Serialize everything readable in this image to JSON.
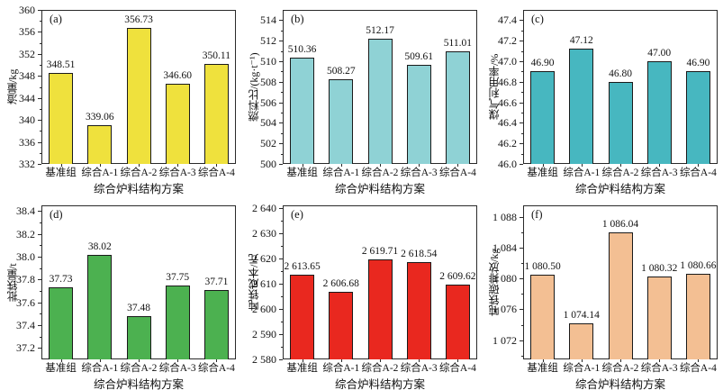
{
  "figure": {
    "background": "#ffffff",
    "text_color": "#111111",
    "axis_color": "#2a2a2a"
  },
  "chart_data": [
    {
      "type": "bar",
      "panel_label": "(a)",
      "title": "",
      "ylabel": "渣量/kg",
      "xlabel": "综合炉料结构方案",
      "categories": [
        "基准组",
        "综合A-1",
        "综合A-2",
        "综合A-3",
        "综合A-4"
      ],
      "values": [
        348.51,
        339.06,
        356.73,
        346.6,
        350.11
      ],
      "value_labels": [
        "348.51",
        "339.06",
        "356.73",
        "346.60",
        "350.11"
      ],
      "yticks": [
        332,
        336,
        340,
        344,
        348,
        352,
        356,
        360
      ],
      "ytick_labels": [
        "332",
        "336",
        "340",
        "344",
        "348",
        "352",
        "356",
        "360"
      ],
      "ylim": [
        332,
        360
      ],
      "grid": false,
      "legend": null,
      "bar_color": "#efe13d",
      "bar_edge_color": "#1a1a1a"
    },
    {
      "type": "bar",
      "panel_label": "(b)",
      "title": "",
      "ylabel": "燃料比/(kg·t⁻¹)",
      "xlabel": "综合炉料结构方案",
      "categories": [
        "基准组",
        "综合A-1",
        "综合A-2",
        "综合A-3",
        "综合A-4"
      ],
      "values": [
        510.36,
        508.27,
        512.17,
        509.61,
        511.01
      ],
      "value_labels": [
        "510.36",
        "508.27",
        "512.17",
        "509.61",
        "511.01"
      ],
      "yticks": [
        500,
        502,
        504,
        506,
        508,
        510,
        512,
        514
      ],
      "ytick_labels": [
        "500",
        "502",
        "504",
        "506",
        "508",
        "510",
        "512",
        "514"
      ],
      "ylim": [
        500,
        515
      ],
      "grid": false,
      "legend": null,
      "bar_color": "#8fd2d5",
      "bar_edge_color": "#1a1a1a"
    },
    {
      "type": "bar",
      "panel_label": "(c)",
      "title": "",
      "ylabel": "煤气利用率/%",
      "xlabel": "综合炉料结构方案",
      "categories": [
        "基准组",
        "综合A-1",
        "综合A-2",
        "综合A-3",
        "综合A-4"
      ],
      "values": [
        46.9,
        47.12,
        46.8,
        47.0,
        46.9
      ],
      "value_labels": [
        "46.90",
        "47.12",
        "46.80",
        "47.00",
        "46.90"
      ],
      "yticks": [
        46.0,
        46.2,
        46.4,
        46.6,
        46.8,
        47.0,
        47.2,
        47.4
      ],
      "ytick_labels": [
        "46.0",
        "46.2",
        "46.4",
        "46.6",
        "46.8",
        "47.0",
        "47.2",
        "47.4"
      ],
      "ylim": [
        46.0,
        47.5
      ],
      "grid": false,
      "legend": null,
      "bar_color": "#47b7c0",
      "bar_edge_color": "#1a1a1a"
    },
    {
      "type": "bar",
      "panel_label": "(d)",
      "title": "",
      "ylabel": "批铁量/t",
      "xlabel": "综合炉料结构方案",
      "categories": [
        "基准组",
        "综合A-1",
        "综合A-2",
        "综合A-3",
        "综合A-4"
      ],
      "values": [
        37.73,
        38.02,
        37.48,
        37.75,
        37.71
      ],
      "value_labels": [
        "37.73",
        "38.02",
        "37.48",
        "37.75",
        "37.71"
      ],
      "yticks": [
        37.2,
        37.4,
        37.6,
        37.8,
        38.0,
        38.2,
        38.4
      ],
      "ytick_labels": [
        "37.2",
        "37.4",
        "37.6",
        "37.8",
        "38.0",
        "38.2",
        "38.4"
      ],
      "ylim": [
        37.1,
        38.45
      ],
      "grid": false,
      "legend": null,
      "bar_color": "#4cb150",
      "bar_edge_color": "#1a1a1a"
    },
    {
      "type": "bar",
      "panel_label": "(e)",
      "title": "",
      "ylabel": "吨铁成本/元",
      "xlabel": "综合炉料结构方案",
      "categories": [
        "基准组",
        "综合A-1",
        "综合A-2",
        "综合A-3",
        "综合A-4"
      ],
      "values": [
        2613.65,
        2606.68,
        2619.71,
        2618.54,
        2609.62
      ],
      "value_labels": [
        "2 613.65",
        "2 606.68",
        "2 619.71",
        "2 618.54",
        "2 609.62"
      ],
      "yticks": [
        2580,
        2590,
        2600,
        2610,
        2620,
        2630,
        2640
      ],
      "ytick_labels": [
        "2 580",
        "2 590",
        "2 600",
        "2 610",
        "2 620",
        "2 630",
        "2 640"
      ],
      "ylim": [
        2580,
        2641
      ],
      "grid": false,
      "legend": null,
      "bar_color": "#e9281f",
      "bar_edge_color": "#1a1a1a"
    },
    {
      "type": "bar",
      "panel_label": "(f)",
      "title": "",
      "ylabel": "吨铁碳排放/kg",
      "xlabel": "综合炉料结构方案",
      "categories": [
        "基准组",
        "综合A-1",
        "综合A-2",
        "综合A-3",
        "综合A-4"
      ],
      "values": [
        1080.5,
        1074.14,
        1086.04,
        1080.32,
        1080.66
      ],
      "value_labels": [
        "1 080.50",
        "1 074.14",
        "1 086.04",
        "1 080.32",
        "1 080.66"
      ],
      "yticks": [
        1072,
        1076,
        1080,
        1084,
        1088
      ],
      "ytick_labels": [
        "1 072",
        "1 076",
        "1 080",
        "1 084",
        "1 088"
      ],
      "ylim": [
        1069.5,
        1089.5
      ],
      "grid": false,
      "legend": null,
      "bar_color": "#f3bf93",
      "bar_edge_color": "#1a1a1a"
    }
  ]
}
